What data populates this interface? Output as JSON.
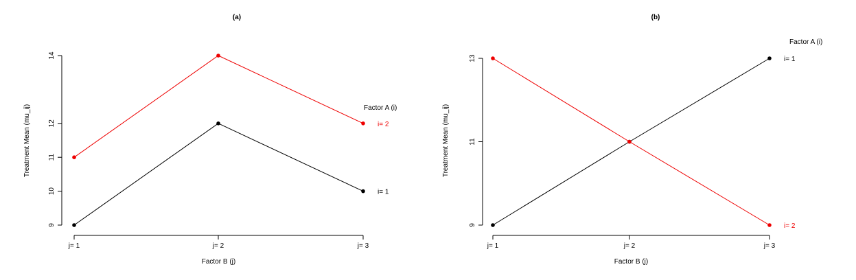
{
  "chart_data": [
    {
      "type": "line",
      "title": "(a)",
      "xlabel": "Factor B (j)",
      "ylabel": "Treatment Mean (mu_ij)",
      "categories": [
        "j= 1",
        "j= 2",
        "j= 3"
      ],
      "yticks": [
        9,
        10,
        11,
        12,
        14
      ],
      "ylim": [
        9,
        14
      ],
      "legend_title": "Factor A (i)",
      "series": [
        {
          "name": "i= 1",
          "values": [
            9,
            12,
            10
          ],
          "color": "#000000"
        },
        {
          "name": "i= 2",
          "values": [
            11,
            14,
            12
          ],
          "color": "#ee0000"
        }
      ]
    },
    {
      "type": "line",
      "title": "(b)",
      "xlabel": "Factor B (j)",
      "ylabel": "Treatment Mean (mu_ij)",
      "categories": [
        "j= 1",
        "j= 2",
        "j= 3"
      ],
      "yticks": [
        9,
        11,
        13
      ],
      "ylim": [
        9,
        13
      ],
      "legend_title": "Factor A (i)",
      "series": [
        {
          "name": "i= 1",
          "values": [
            9,
            11,
            13
          ],
          "color": "#000000"
        },
        {
          "name": "i= 2",
          "values": [
            13,
            11,
            9
          ],
          "color": "#ee0000"
        }
      ]
    }
  ]
}
